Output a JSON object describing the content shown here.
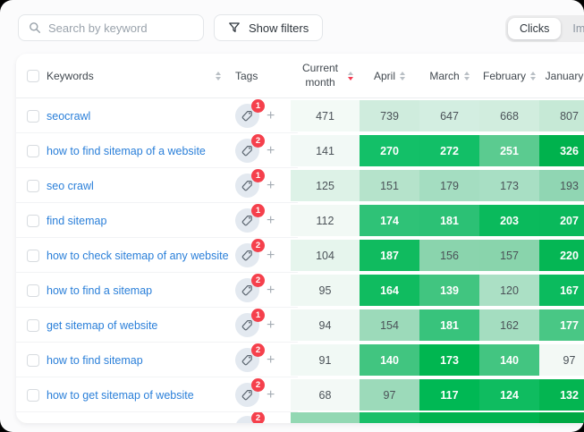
{
  "toolbar": {
    "search_placeholder": "Search by keyword",
    "filters_label": "Show filters",
    "toggle": [
      "Clicks",
      "Impressions"
    ],
    "selected_toggle": "Clicks"
  },
  "table": {
    "header": {
      "keywords": "Keywords",
      "tags": "Tags",
      "current_month": "Current month",
      "months": [
        "April",
        "March",
        "February",
        "January"
      ],
      "sorted_by": "Current month",
      "sort_direction": "desc"
    },
    "rows": [
      {
        "keyword": "seocrawl",
        "tag_count": 1,
        "current_month": 471,
        "cm_bg": "#f3faf6",
        "cells": [
          {
            "v": 739,
            "bg": "#cfecdd",
            "white": false
          },
          {
            "v": 647,
            "bg": "#d3eee1",
            "white": false
          },
          {
            "v": 668,
            "bg": "#d1edde",
            "white": false
          },
          {
            "v": 807,
            "bg": "#c6e9d6",
            "white": false
          }
        ]
      },
      {
        "keyword": "how to find sitemap of a website",
        "tag_count": 2,
        "current_month": 141,
        "cm_bg": "#f2f9f6",
        "cells": [
          {
            "v": 270,
            "bg": "#13c068",
            "white": true
          },
          {
            "v": 272,
            "bg": "#12bf67",
            "white": true
          },
          {
            "v": 251,
            "bg": "#5bcb90",
            "white": true
          },
          {
            "v": 326,
            "bg": "#00b24d",
            "white": true
          }
        ]
      },
      {
        "keyword": "seo crawl",
        "tag_count": 1,
        "current_month": 125,
        "cm_bg": "#ddf2e7",
        "cells": [
          {
            "v": 151,
            "bg": "#b5e3cb",
            "white": false
          },
          {
            "v": 179,
            "bg": "#a4ddc1",
            "white": false
          },
          {
            "v": 173,
            "bg": "#a8dfc4",
            "white": false
          },
          {
            "v": 193,
            "bg": "#90d6b3",
            "white": false
          }
        ]
      },
      {
        "keyword": "find sitemap",
        "tag_count": 1,
        "current_month": 112,
        "cm_bg": "#f2f9f5",
        "cells": [
          {
            "v": 174,
            "bg": "#2fc277",
            "white": true
          },
          {
            "v": 181,
            "bg": "#2cc175",
            "white": true
          },
          {
            "v": 203,
            "bg": "#0aba5c",
            "white": true
          },
          {
            "v": 207,
            "bg": "#09b95b",
            "white": true
          }
        ]
      },
      {
        "keyword": "how to check sitemap of any website",
        "tag_count": 2,
        "current_month": 104,
        "cm_bg": "#e6f5ed",
        "cells": [
          {
            "v": 187,
            "bg": "#10bb5f",
            "white": true
          },
          {
            "v": 156,
            "bg": "#8ad4ad",
            "white": false
          },
          {
            "v": 157,
            "bg": "#89d4ac",
            "white": false
          },
          {
            "v": 220,
            "bg": "#05b654",
            "white": true
          }
        ]
      },
      {
        "keyword": "how to find a sitemap",
        "tag_count": 2,
        "current_month": 95,
        "cm_bg": "#eff8f3",
        "cells": [
          {
            "v": 164,
            "bg": "#10bc60",
            "white": true
          },
          {
            "v": 139,
            "bg": "#41c580",
            "white": true
          },
          {
            "v": 120,
            "bg": "#abe0c5",
            "white": false
          },
          {
            "v": 167,
            "bg": "#0bbb5e",
            "white": true
          }
        ]
      },
      {
        "keyword": "get sitemap of website",
        "tag_count": 1,
        "current_month": 94,
        "cm_bg": "#f0f8f4",
        "cells": [
          {
            "v": 154,
            "bg": "#9cdaba",
            "white": false
          },
          {
            "v": 181,
            "bg": "#38c37c",
            "white": true
          },
          {
            "v": 162,
            "bg": "#a4ddc0",
            "white": false
          },
          {
            "v": 177,
            "bg": "#49c785",
            "white": true
          }
        ]
      },
      {
        "keyword": "how to find sitemap",
        "tag_count": 2,
        "current_month": 91,
        "cm_bg": "#f1f9f5",
        "cells": [
          {
            "v": 140,
            "bg": "#41c580",
            "white": true
          },
          {
            "v": 173,
            "bg": "#00b650",
            "white": true
          },
          {
            "v": 140,
            "bg": "#43c581",
            "white": true
          },
          {
            "v": 97,
            "bg": "#f3f9f5",
            "white": false
          }
        ]
      },
      {
        "keyword": "how to get sitemap of website",
        "tag_count": 2,
        "current_month": 68,
        "cm_bg": "#f3f9f6",
        "cells": [
          {
            "v": 97,
            "bg": "#9cdaba",
            "white": false
          },
          {
            "v": 117,
            "bg": "#00b854",
            "white": true
          },
          {
            "v": 124,
            "bg": "#0fbc60",
            "white": true
          },
          {
            "v": 132,
            "bg": "#04b551",
            "white": true
          }
        ]
      }
    ],
    "partial_row": {
      "tag_count": 2,
      "cm_bg": "#93d8b3",
      "cell_bgs": [
        "#1bbf69",
        "#00b34f",
        "#00b34f",
        "#00a843"
      ]
    }
  },
  "colors": {
    "accent_green": "#00b34f",
    "badge_red": "#f5404c",
    "link_blue": "#2a7fd9"
  }
}
